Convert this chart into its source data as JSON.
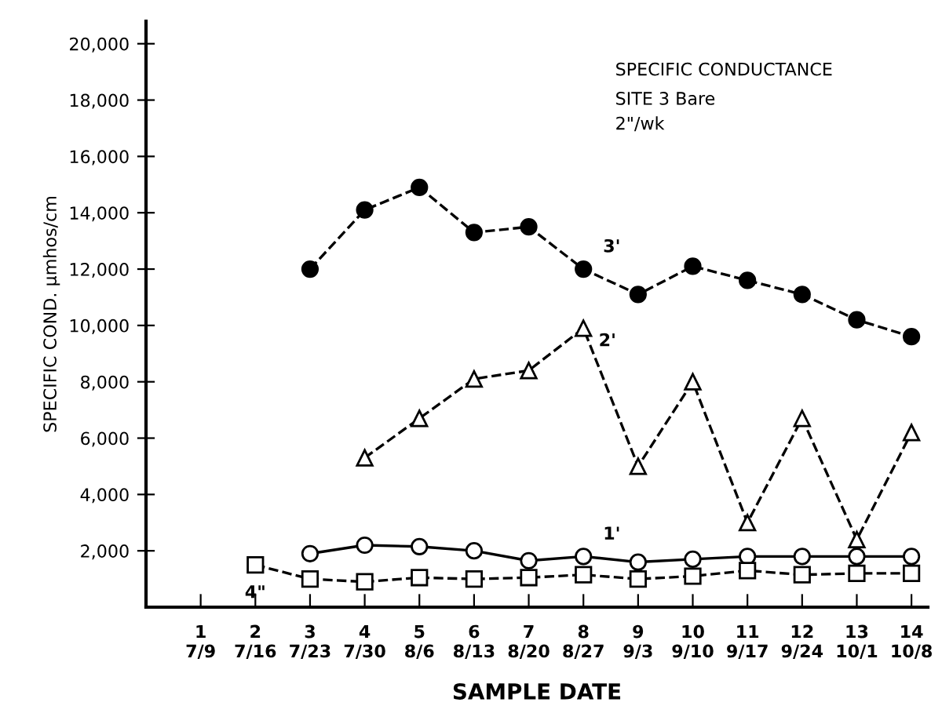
{
  "chart_data": {
    "type": "line",
    "title": "SPECIFIC CONDUCTANCE",
    "subtitle": "SITE 3 Bare\n2\"/wk",
    "xlabel": "SAMPLE DATE",
    "ylabel": "SPECIFIC COND. µmhos/cm",
    "categories": [
      "1\n7/9",
      "2\n7/16",
      "3\n7/23",
      "4\n7/30",
      "5\n8/6",
      "6\n8/13",
      "7\n8/20",
      "8\n8/27",
      "9\n9/3",
      "10\n9/10",
      "11\n9/17",
      "12\n9/24",
      "13\n10/1",
      "14\n10/8"
    ],
    "series": [
      {
        "name": "3'",
        "color": "#000000",
        "marker": "circle",
        "line_style": "dashed",
        "values": [
          null,
          null,
          12000,
          14100,
          14900,
          13300,
          13500,
          12000,
          11100,
          12100,
          11600,
          11100,
          10200,
          9600
        ]
      },
      {
        "name": "2'",
        "color": "#000000",
        "marker": "triangle",
        "line_style": "dashed",
        "values": [
          null,
          null,
          null,
          5300,
          6700,
          8100,
          8400,
          9900,
          5000,
          8000,
          3000,
          6700,
          2400,
          6200
        ]
      },
      {
        "name": "1'",
        "color": "#000000",
        "marker": "circle",
        "line_style": "solid",
        "values": [
          null,
          null,
          1900,
          2200,
          2150,
          2000,
          1650,
          1800,
          1600,
          1700,
          1800,
          1800,
          1800,
          1800
        ]
      },
      {
        "name": "4\"",
        "color": "#000000",
        "marker": "square",
        "line_style": "dashed",
        "values": [
          null,
          1500,
          1000,
          900,
          1050,
          1000,
          1050,
          1150,
          1000,
          1100,
          1300,
          1150,
          1200,
          1200
        ]
      }
    ],
    "ylim": [
      0,
      20800
    ],
    "yticks": [
      {
        "value": 2000,
        "label": "2,000"
      },
      {
        "value": 4000,
        "label": "4,000"
      },
      {
        "value": 6000,
        "label": "6,000"
      },
      {
        "value": 8000,
        "label": "8,000"
      },
      {
        "value": 10000,
        "label": "10,000"
      },
      {
        "value": 12000,
        "label": "12,000"
      },
      {
        "value": 14000,
        "label": "14,000"
      },
      {
        "value": 16000,
        "label": "16,000"
      },
      {
        "value": 18000,
        "label": "18,000"
      },
      {
        "value": 20000,
        "label": "20,000"
      }
    ],
    "grid": false,
    "legend": false
  }
}
